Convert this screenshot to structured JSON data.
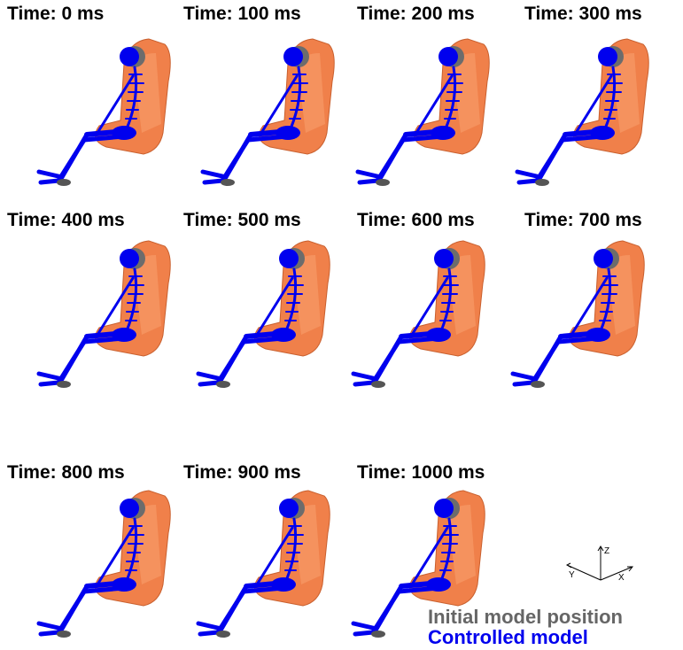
{
  "frames": [
    {
      "title": "Time: 0 ms"
    },
    {
      "title": "Time: 100 ms"
    },
    {
      "title": "Time: 200 ms"
    },
    {
      "title": "Time: 300 ms"
    },
    {
      "title": "Time: 400 ms"
    },
    {
      "title": "Time: 500 ms"
    },
    {
      "title": "Time: 600 ms"
    },
    {
      "title": "Time: 700 ms"
    },
    {
      "title": "Time: 800 ms"
    },
    {
      "title": "Time: 900 ms"
    },
    {
      "title": "Time: 1000 ms"
    }
  ],
  "axes": {
    "z": "Z",
    "y": "Y",
    "x": "X"
  },
  "legend": {
    "initial": "Initial model  position",
    "controlled": "Controlled model"
  }
}
